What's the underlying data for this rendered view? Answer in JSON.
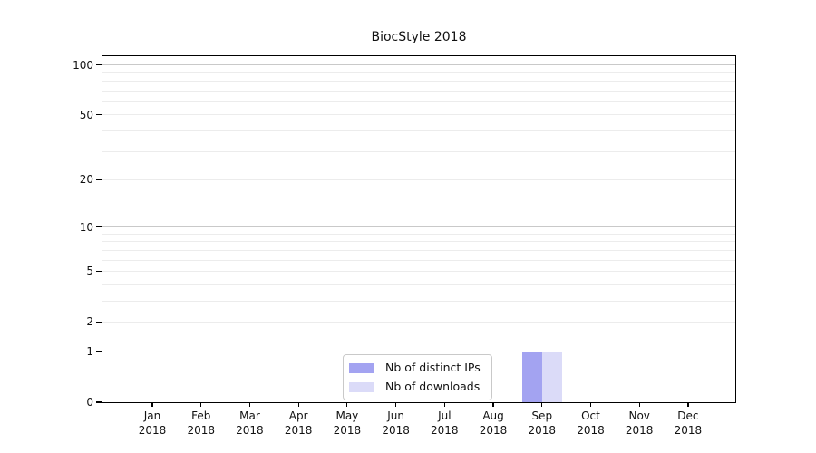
{
  "chart_data": {
    "type": "bar",
    "title": "BiocStyle 2018",
    "categories": [
      "Jan",
      "Feb",
      "Mar",
      "Apr",
      "May",
      "Jun",
      "Jul",
      "Aug",
      "Sep",
      "Oct",
      "Nov",
      "Dec"
    ],
    "category_year": "2018",
    "series": [
      {
        "name": "Nb of distinct IPs",
        "color": "#a3a3f1",
        "values": [
          0,
          0,
          0,
          0,
          0,
          0,
          0,
          0,
          1,
          0,
          0,
          0
        ]
      },
      {
        "name": "Nb of downloads",
        "color": "#dbdbf8",
        "values": [
          0,
          0,
          0,
          0,
          0,
          0,
          0,
          0,
          1,
          0,
          0,
          0
        ]
      }
    ],
    "xlabel": "",
    "ylabel": "",
    "y_scale": "log10(1+x)",
    "y_ticks": [
      0,
      1,
      2,
      5,
      10,
      20,
      50,
      100
    ],
    "ylim": [
      0,
      113
    ],
    "grid": true,
    "grid_minor_values": [
      1,
      2,
      3,
      4,
      5,
      6,
      7,
      8,
      9,
      10,
      20,
      30,
      40,
      50,
      60,
      70,
      80,
      90,
      100
    ],
    "grid_major_values": [
      1,
      10,
      100
    ],
    "legend_position": "inside-bottom-center",
    "colors": {
      "axis": "#000000",
      "grid_minor": "#ececec",
      "grid_major": "#c9c9c9",
      "text": "#111111",
      "legend_border": "#c9c9c9",
      "background": "#ffffff"
    }
  }
}
